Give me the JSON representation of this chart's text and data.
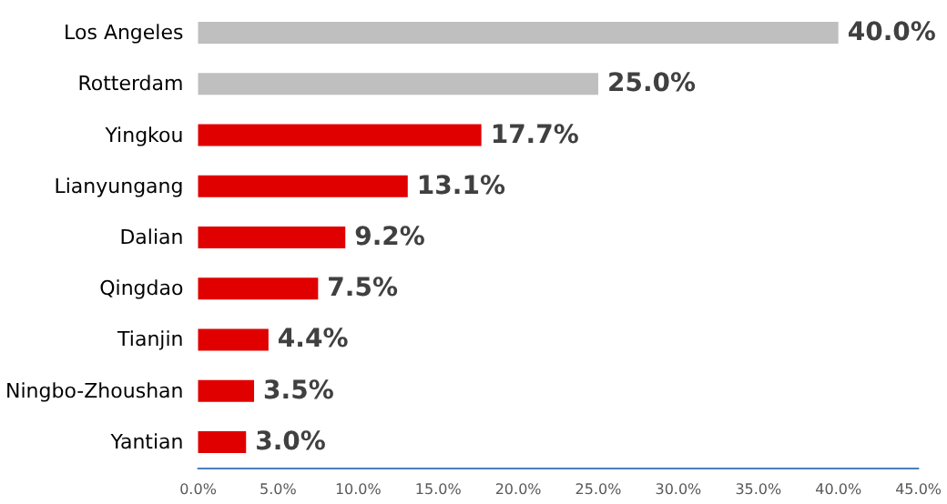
{
  "chart_data": {
    "type": "bar",
    "orientation": "horizontal",
    "categories": [
      "Los Angeles",
      "Rotterdam",
      "Yingkou",
      "Lianyungang",
      "Dalian",
      "Qingdao",
      "Tianjin",
      "Ningbo-Zhoushan",
      "Yantian"
    ],
    "values": [
      40.0,
      25.0,
      17.7,
      13.1,
      9.2,
      7.5,
      4.4,
      3.5,
      3.0
    ],
    "colors": [
      "#bfbfbf",
      "#bfbfbf",
      "#e00000",
      "#e00000",
      "#e00000",
      "#e00000",
      "#e00000",
      "#e00000",
      "#e00000"
    ],
    "value_labels": [
      "40.0%",
      "25.0%",
      "17.7%",
      "13.1%",
      "9.2%",
      "7.5%",
      "4.4%",
      "3.5%",
      "3.0%"
    ],
    "xlim": [
      0,
      45
    ],
    "xticks": [
      {
        "value": 0,
        "label": "0.0%"
      },
      {
        "value": 5,
        "label": "5.0%"
      },
      {
        "value": 10,
        "label": "10.0%"
      },
      {
        "value": 15,
        "label": "15.0%"
      },
      {
        "value": 20,
        "label": "20.0%"
      },
      {
        "value": 25,
        "label": "25.0%"
      },
      {
        "value": 30,
        "label": "30.0%"
      },
      {
        "value": 35,
        "label": "35.0%"
      },
      {
        "value": 40,
        "label": "40.0%"
      },
      {
        "value": 45,
        "label": "45.0%"
      }
    ],
    "grid": false
  }
}
